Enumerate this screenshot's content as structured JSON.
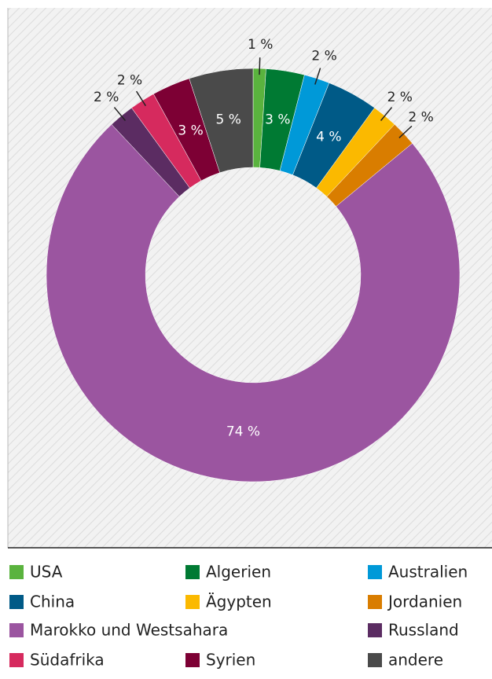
{
  "chart_data": {
    "type": "donut",
    "categories": [
      "USA",
      "Algerien",
      "Australien",
      "China",
      "Ägypten",
      "Jordanien",
      "Marokko und Westsahara",
      "Russland",
      "Südafrika",
      "Syrien",
      "andere"
    ],
    "values": [
      1,
      3,
      2,
      4,
      2,
      2,
      74,
      2,
      2,
      3,
      5
    ],
    "value_labels": [
      "1 %",
      "3 %",
      "2 %",
      "4 %",
      "2 %",
      "2 %",
      "74 %",
      "2 %",
      "2 %",
      "3 %",
      "5 %"
    ],
    "colors": [
      "#5ab33e",
      "#007a33",
      "#0099d8",
      "#005a87",
      "#fbb900",
      "#d97d00",
      "#9b55a0",
      "#5b2c62",
      "#d62a5e",
      "#7d0034",
      "#4a4a4a"
    ]
  }
}
